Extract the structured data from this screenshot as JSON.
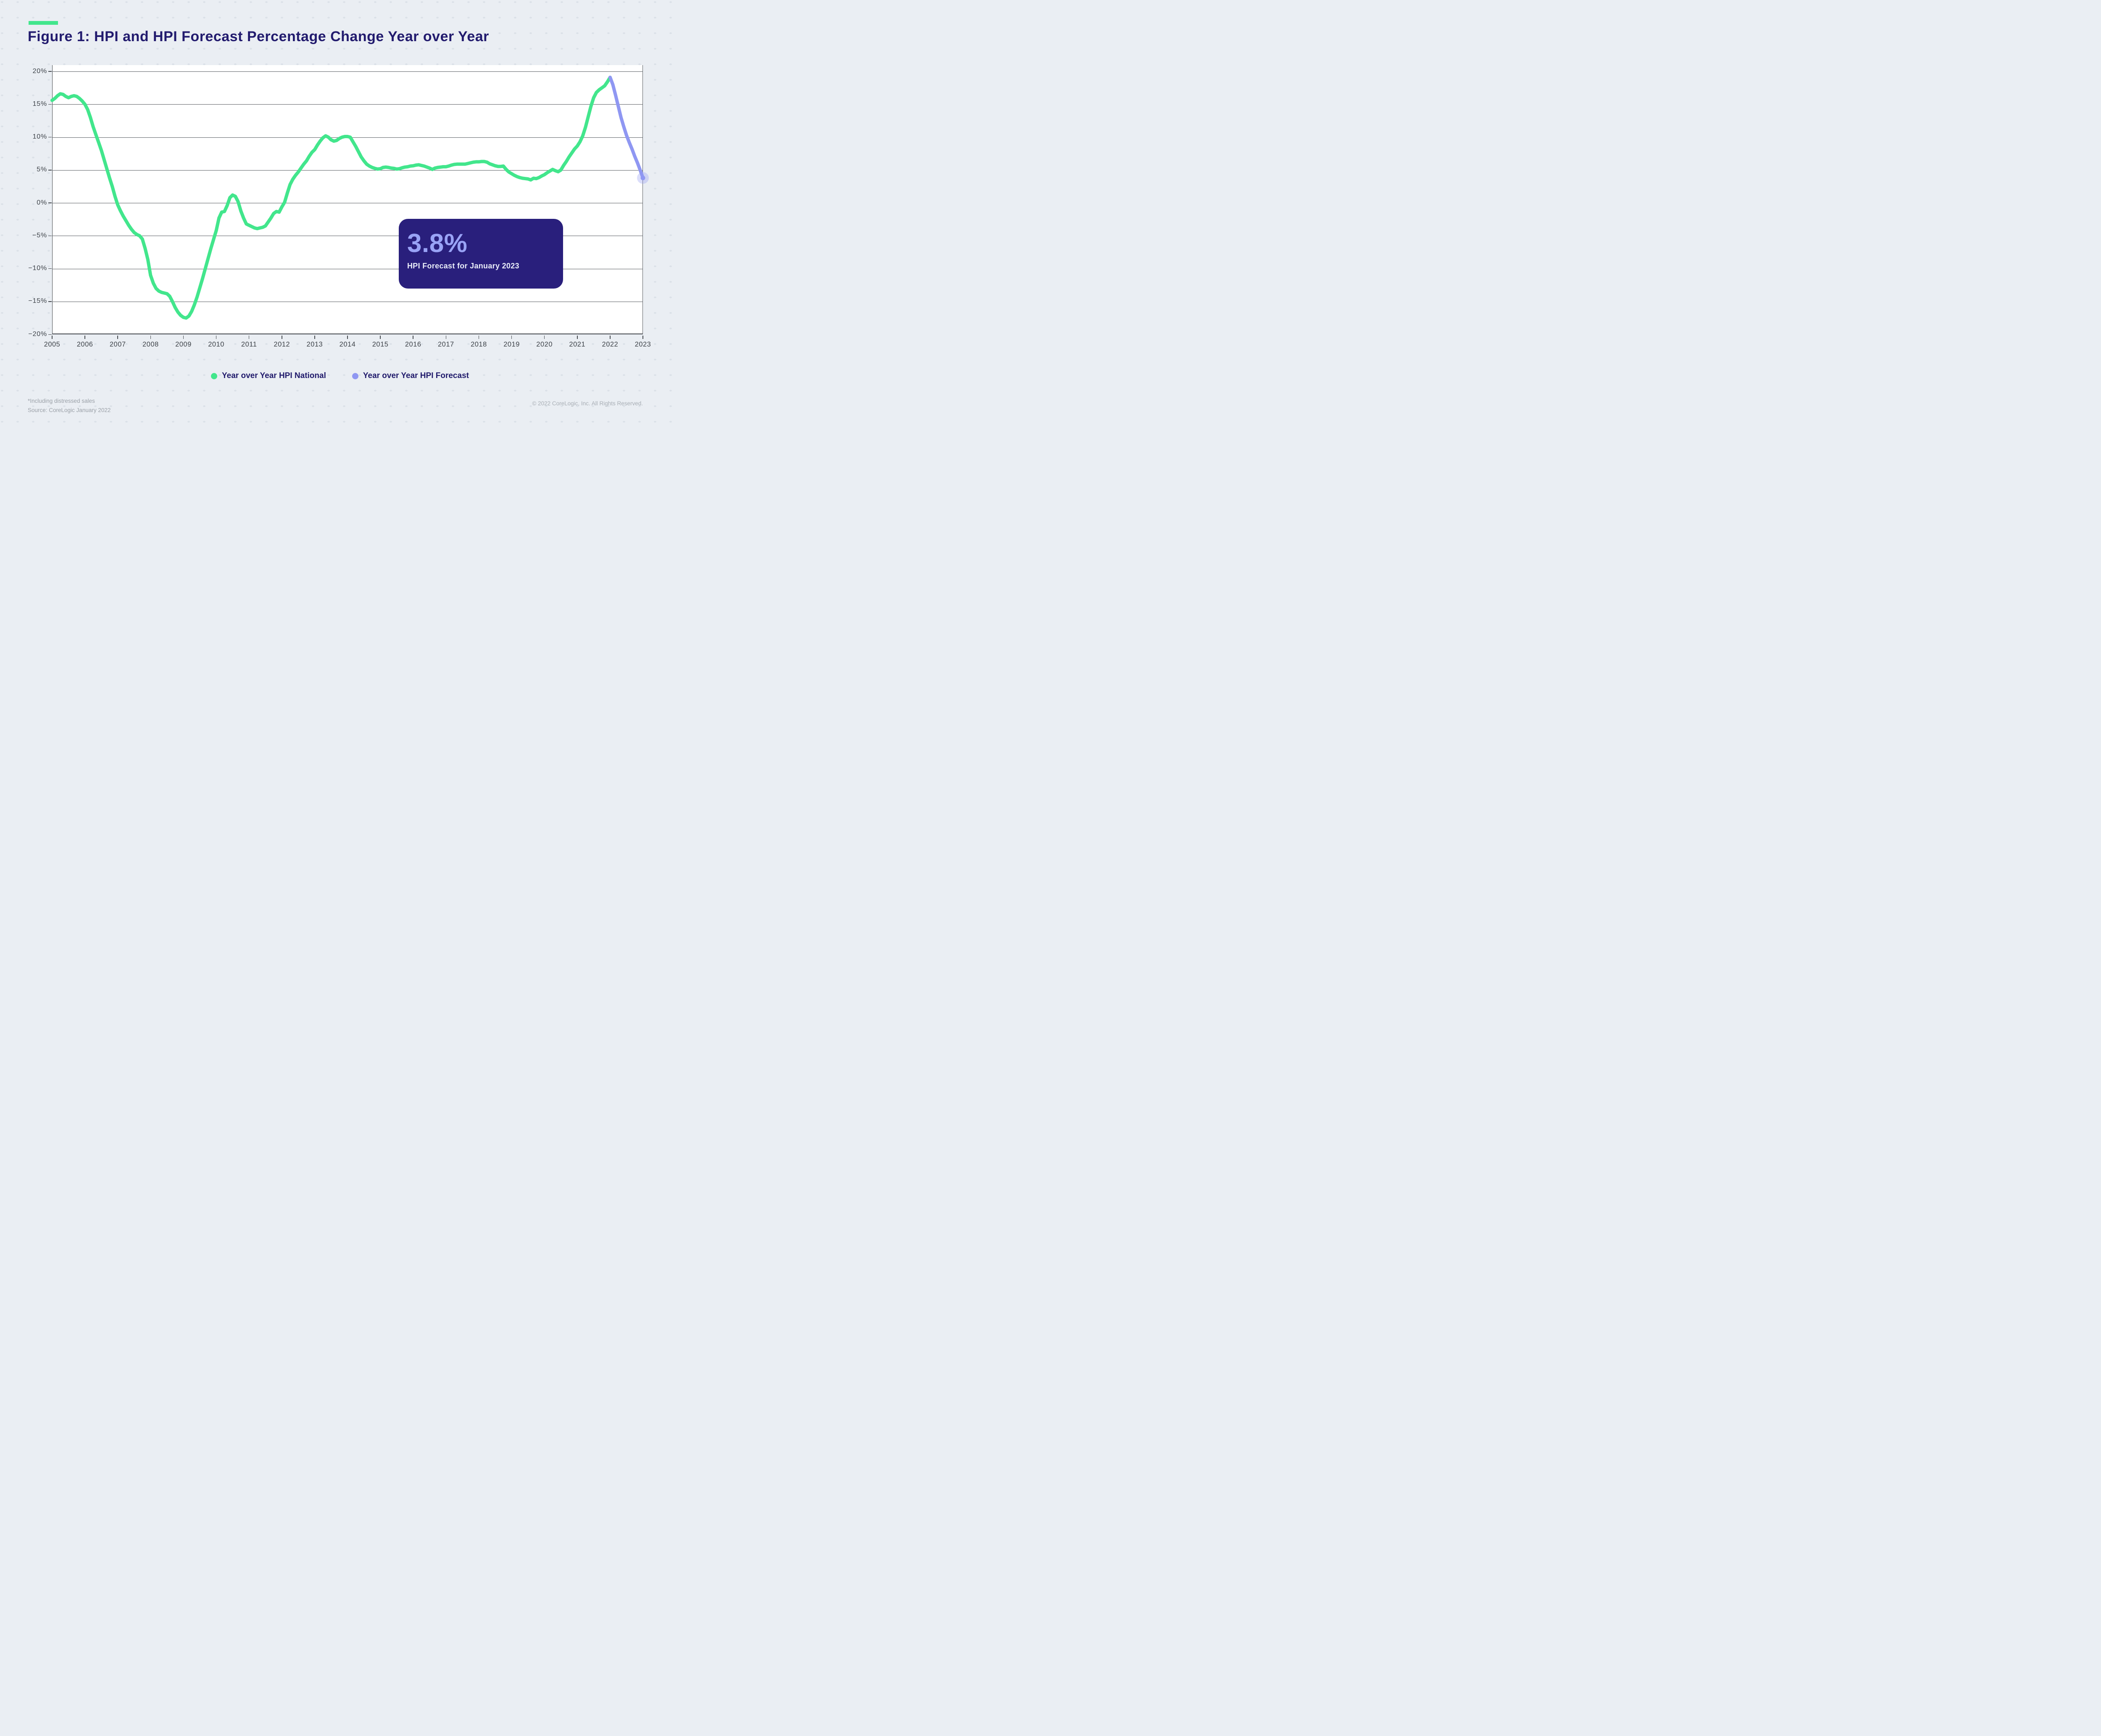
{
  "page": {
    "background": "#EAEEF3",
    "dot_color": "#DBE1E8"
  },
  "header": {
    "title": "Figure 1: HPI and HPI Forecast Percentage Change Year over Year",
    "accent_color": "#46E88C"
  },
  "chart_data": {
    "type": "line",
    "title": "Figure 1: HPI and HPI Forecast Percentage Change Year over Year",
    "xlabel": "",
    "ylabel": "",
    "ylim": [
      -20,
      20
    ],
    "grid": "horizontal",
    "x_start_year": 2005,
    "x_end_year": 2023,
    "x_ticks": [
      2005,
      2006,
      2007,
      2008,
      2009,
      2010,
      2011,
      2012,
      2013,
      2014,
      2015,
      2016,
      2017,
      2018,
      2019,
      2020,
      2021,
      2022,
      2023
    ],
    "y_ticks": [
      {
        "value": 20,
        "label": "20%"
      },
      {
        "value": 15,
        "label": "15%"
      },
      {
        "value": 10,
        "label": "10%"
      },
      {
        "value": 5,
        "label": "5%"
      },
      {
        "value": 0,
        "label": "0%"
      },
      {
        "value": -5,
        "label": "−5%"
      },
      {
        "value": -10,
        "label": "−10%"
      },
      {
        "value": -15,
        "label": "−15%"
      },
      {
        "value": -20,
        "label": "−20%"
      }
    ],
    "series": [
      {
        "name": "Year over Year HPI National",
        "color": "#42E68C",
        "start_month": 0,
        "start_label": "2005-01",
        "values": [
          15.6,
          15.9,
          16.3,
          16.6,
          16.5,
          16.2,
          16.0,
          16.2,
          16.3,
          16.2,
          15.9,
          15.5,
          15.0,
          14.2,
          13.0,
          11.6,
          10.4,
          9.2,
          8.0,
          6.6,
          5.2,
          3.8,
          2.5,
          1.0,
          -0.3,
          -1.2,
          -2.0,
          -2.7,
          -3.4,
          -4.0,
          -4.5,
          -4.8,
          -5.0,
          -5.5,
          -6.9,
          -8.6,
          -11.0,
          -12.2,
          -13.0,
          -13.4,
          -13.6,
          -13.7,
          -13.8,
          -14.2,
          -15.0,
          -15.9,
          -16.6,
          -17.1,
          -17.4,
          -17.5,
          -17.2,
          -16.5,
          -15.5,
          -14.3,
          -12.9,
          -11.5,
          -10.0,
          -8.5,
          -7.0,
          -5.6,
          -4.2,
          -2.3,
          -1.4,
          -1.3,
          -0.4,
          0.8,
          1.2,
          1.0,
          0.2,
          -1.2,
          -2.3,
          -3.2,
          -3.4,
          -3.6,
          -3.8,
          -3.9,
          -3.8,
          -3.7,
          -3.5,
          -2.9,
          -2.3,
          -1.6,
          -1.3,
          -1.4,
          -0.6,
          0.1,
          1.5,
          2.8,
          3.6,
          4.2,
          4.7,
          5.3,
          5.9,
          6.4,
          7.1,
          7.7,
          8.1,
          8.8,
          9.4,
          9.9,
          10.2,
          10.0,
          9.6,
          9.4,
          9.5,
          9.8,
          10.0,
          10.1,
          10.1,
          10.0,
          9.3,
          8.6,
          7.8,
          7.0,
          6.4,
          5.9,
          5.6,
          5.4,
          5.25,
          5.15,
          5.2,
          5.4,
          5.45,
          5.4,
          5.3,
          5.25,
          5.15,
          5.2,
          5.35,
          5.45,
          5.5,
          5.6,
          5.65,
          5.75,
          5.8,
          5.7,
          5.6,
          5.45,
          5.3,
          5.1,
          5.3,
          5.4,
          5.45,
          5.5,
          5.5,
          5.6,
          5.75,
          5.85,
          5.9,
          5.9,
          5.9,
          5.9,
          6.0,
          6.1,
          6.2,
          6.25,
          6.25,
          6.3,
          6.3,
          6.2,
          5.95,
          5.8,
          5.65,
          5.55,
          5.55,
          5.6,
          5.1,
          4.7,
          4.45,
          4.2,
          4.0,
          3.85,
          3.75,
          3.7,
          3.65,
          3.5,
          3.75,
          3.7,
          3.85,
          4.1,
          4.3,
          4.6,
          4.85,
          5.1,
          4.9,
          4.75,
          5.0,
          5.7,
          6.3,
          7.0,
          7.6,
          8.2,
          8.65,
          9.3,
          10.2,
          11.5,
          13.1,
          14.7,
          16.0,
          16.8,
          17.2,
          17.5,
          17.8,
          18.4,
          19.1
        ]
      },
      {
        "name": "Year over Year HPI Forecast",
        "color": "#8F97F2",
        "start_month": 204,
        "start_label": "2022-01",
        "values": [
          19.1,
          18.0,
          16.4,
          14.7,
          13.0,
          11.6,
          10.3,
          9.2,
          8.2,
          7.1,
          6.1,
          5.0,
          3.8
        ]
      }
    ],
    "end_marker": {
      "month": 216,
      "value": 3.8,
      "halo_color": "rgba(143,151,242,0.32)",
      "dot_color": "#8F97F2"
    },
    "legend_position": "bottom-center"
  },
  "callout": {
    "value": "3.8%",
    "label": "HPI Forecast for January 2023",
    "bg": "#291F7C",
    "value_color": "#99A3F6"
  },
  "legend": {
    "items": [
      {
        "label": "Year over Year HPI National",
        "color": "#42E68C"
      },
      {
        "label": "Year over Year HPI Forecast",
        "color": "#8F97F2"
      }
    ]
  },
  "footer": {
    "note_line1": "*Including distressed sales",
    "note_line2": "Source: CoreLogic January 2022",
    "copyright": "© 2022 CoreLogic, Inc. All Rights Reserved."
  }
}
